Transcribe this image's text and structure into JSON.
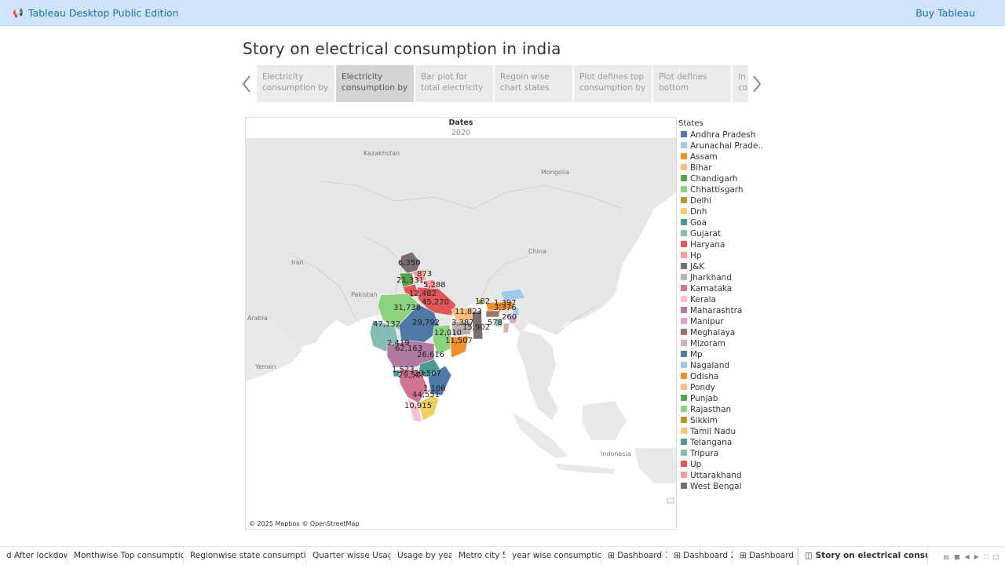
{
  "topbar": {
    "app_title": "Tableau Desktop Public Edition",
    "buy_label": "Buy Tableau"
  },
  "story": {
    "title": "Story on electrical consumption in india",
    "points": [
      {
        "text": "Electricity consumption by"
      },
      {
        "text": "Electricity consumption by"
      },
      {
        "text": "Bar plot for total electricity"
      },
      {
        "text": "Regoin wise chart states"
      },
      {
        "text": "Plot defines top consumption by"
      },
      {
        "text": "Plot defines bottom"
      },
      {
        "text": "In co"
      }
    ],
    "active_point": 1
  },
  "map": {
    "header_label": "Dates",
    "header_value": "2020",
    "attribution": "© 2025 Mapbox © OpenStreetMap",
    "countries": [
      "Kazakhstan",
      "Mongolia",
      "Iran",
      "China",
      "Pakistan",
      "Arabia",
      "Yemen",
      "Indonesia"
    ],
    "value_labels": [
      "6,350",
      "873",
      "21,331",
      "5,288",
      "12,482",
      "45,270",
      "31,738",
      "182",
      "1,397",
      "11,823",
      "3,376",
      "260",
      "47,132",
      "29,792",
      "3,387",
      "578",
      "15,902",
      "12,010",
      "11,507",
      "2,419",
      "62,163",
      "26,616",
      "1,523",
      "29,587",
      "29,507",
      "1,106",
      "44,551",
      "10,915"
    ]
  },
  "legend": {
    "title": "States",
    "items": [
      {
        "label": "Andhra Pradesh",
        "color": "#4e79a7"
      },
      {
        "label": "Arunachal Prade..",
        "color": "#a0cbe8"
      },
      {
        "label": "Assam",
        "color": "#f28e2b"
      },
      {
        "label": "Bihar",
        "color": "#ffbe7d"
      },
      {
        "label": "Chandigarh",
        "color": "#59a14f"
      },
      {
        "label": "Chhattisgarh",
        "color": "#8cd17d"
      },
      {
        "label": "Delhi",
        "color": "#b6992d"
      },
      {
        "label": "Dnh",
        "color": "#f1ce63"
      },
      {
        "label": "Goa",
        "color": "#499894"
      },
      {
        "label": "Gujarat",
        "color": "#86bcb6"
      },
      {
        "label": "Haryana",
        "color": "#e15759"
      },
      {
        "label": "Hp",
        "color": "#ff9d9a"
      },
      {
        "label": "J&K",
        "color": "#79706e"
      },
      {
        "label": "Jharkhand",
        "color": "#bab0ac"
      },
      {
        "label": "Karnataka",
        "color": "#d37295"
      },
      {
        "label": "Kerala",
        "color": "#fabfd2"
      },
      {
        "label": "Maharashtra",
        "color": "#b07aa1"
      },
      {
        "label": "Manipur",
        "color": "#d4a6c8"
      },
      {
        "label": "Meghalaya",
        "color": "#9d7660"
      },
      {
        "label": "Mizoram",
        "color": "#d7b5a6"
      },
      {
        "label": "Mp",
        "color": "#4e79a7"
      },
      {
        "label": "Nagaland",
        "color": "#a0cbe8"
      },
      {
        "label": "Odisha",
        "color": "#f28e2b"
      },
      {
        "label": "Pondy",
        "color": "#ffbe7d"
      },
      {
        "label": "Punjab",
        "color": "#59a14f"
      },
      {
        "label": "Rajasthan",
        "color": "#8cd17d"
      },
      {
        "label": "Sikkim",
        "color": "#b6992d"
      },
      {
        "label": "Tamil Nadu",
        "color": "#f1ce63"
      },
      {
        "label": "Telangana",
        "color": "#499894"
      },
      {
        "label": "Tripura",
        "color": "#86bcb6"
      },
      {
        "label": "Up",
        "color": "#e15759"
      },
      {
        "label": "Uttarakhand",
        "color": "#ff9d9a"
      },
      {
        "label": "West Bengal",
        "color": "#79706e"
      }
    ]
  },
  "sheet_tabs": [
    {
      "label": "d After lockdown"
    },
    {
      "label": "Monthwise Top consumption"
    },
    {
      "label": "Regionwise state consumption"
    },
    {
      "label": "Quarter wisse Usage"
    },
    {
      "label": "Usage by year"
    },
    {
      "label": "Metro city 5"
    },
    {
      "label": "year wise consumption"
    },
    {
      "label": "⊞ Dashboard 1"
    },
    {
      "label": "⊞ Dashboard 2"
    },
    {
      "label": "⊞ Dashboard 3"
    },
    {
      "label": "◫ Story on electrical consump..."
    }
  ],
  "active_tab": 10
}
